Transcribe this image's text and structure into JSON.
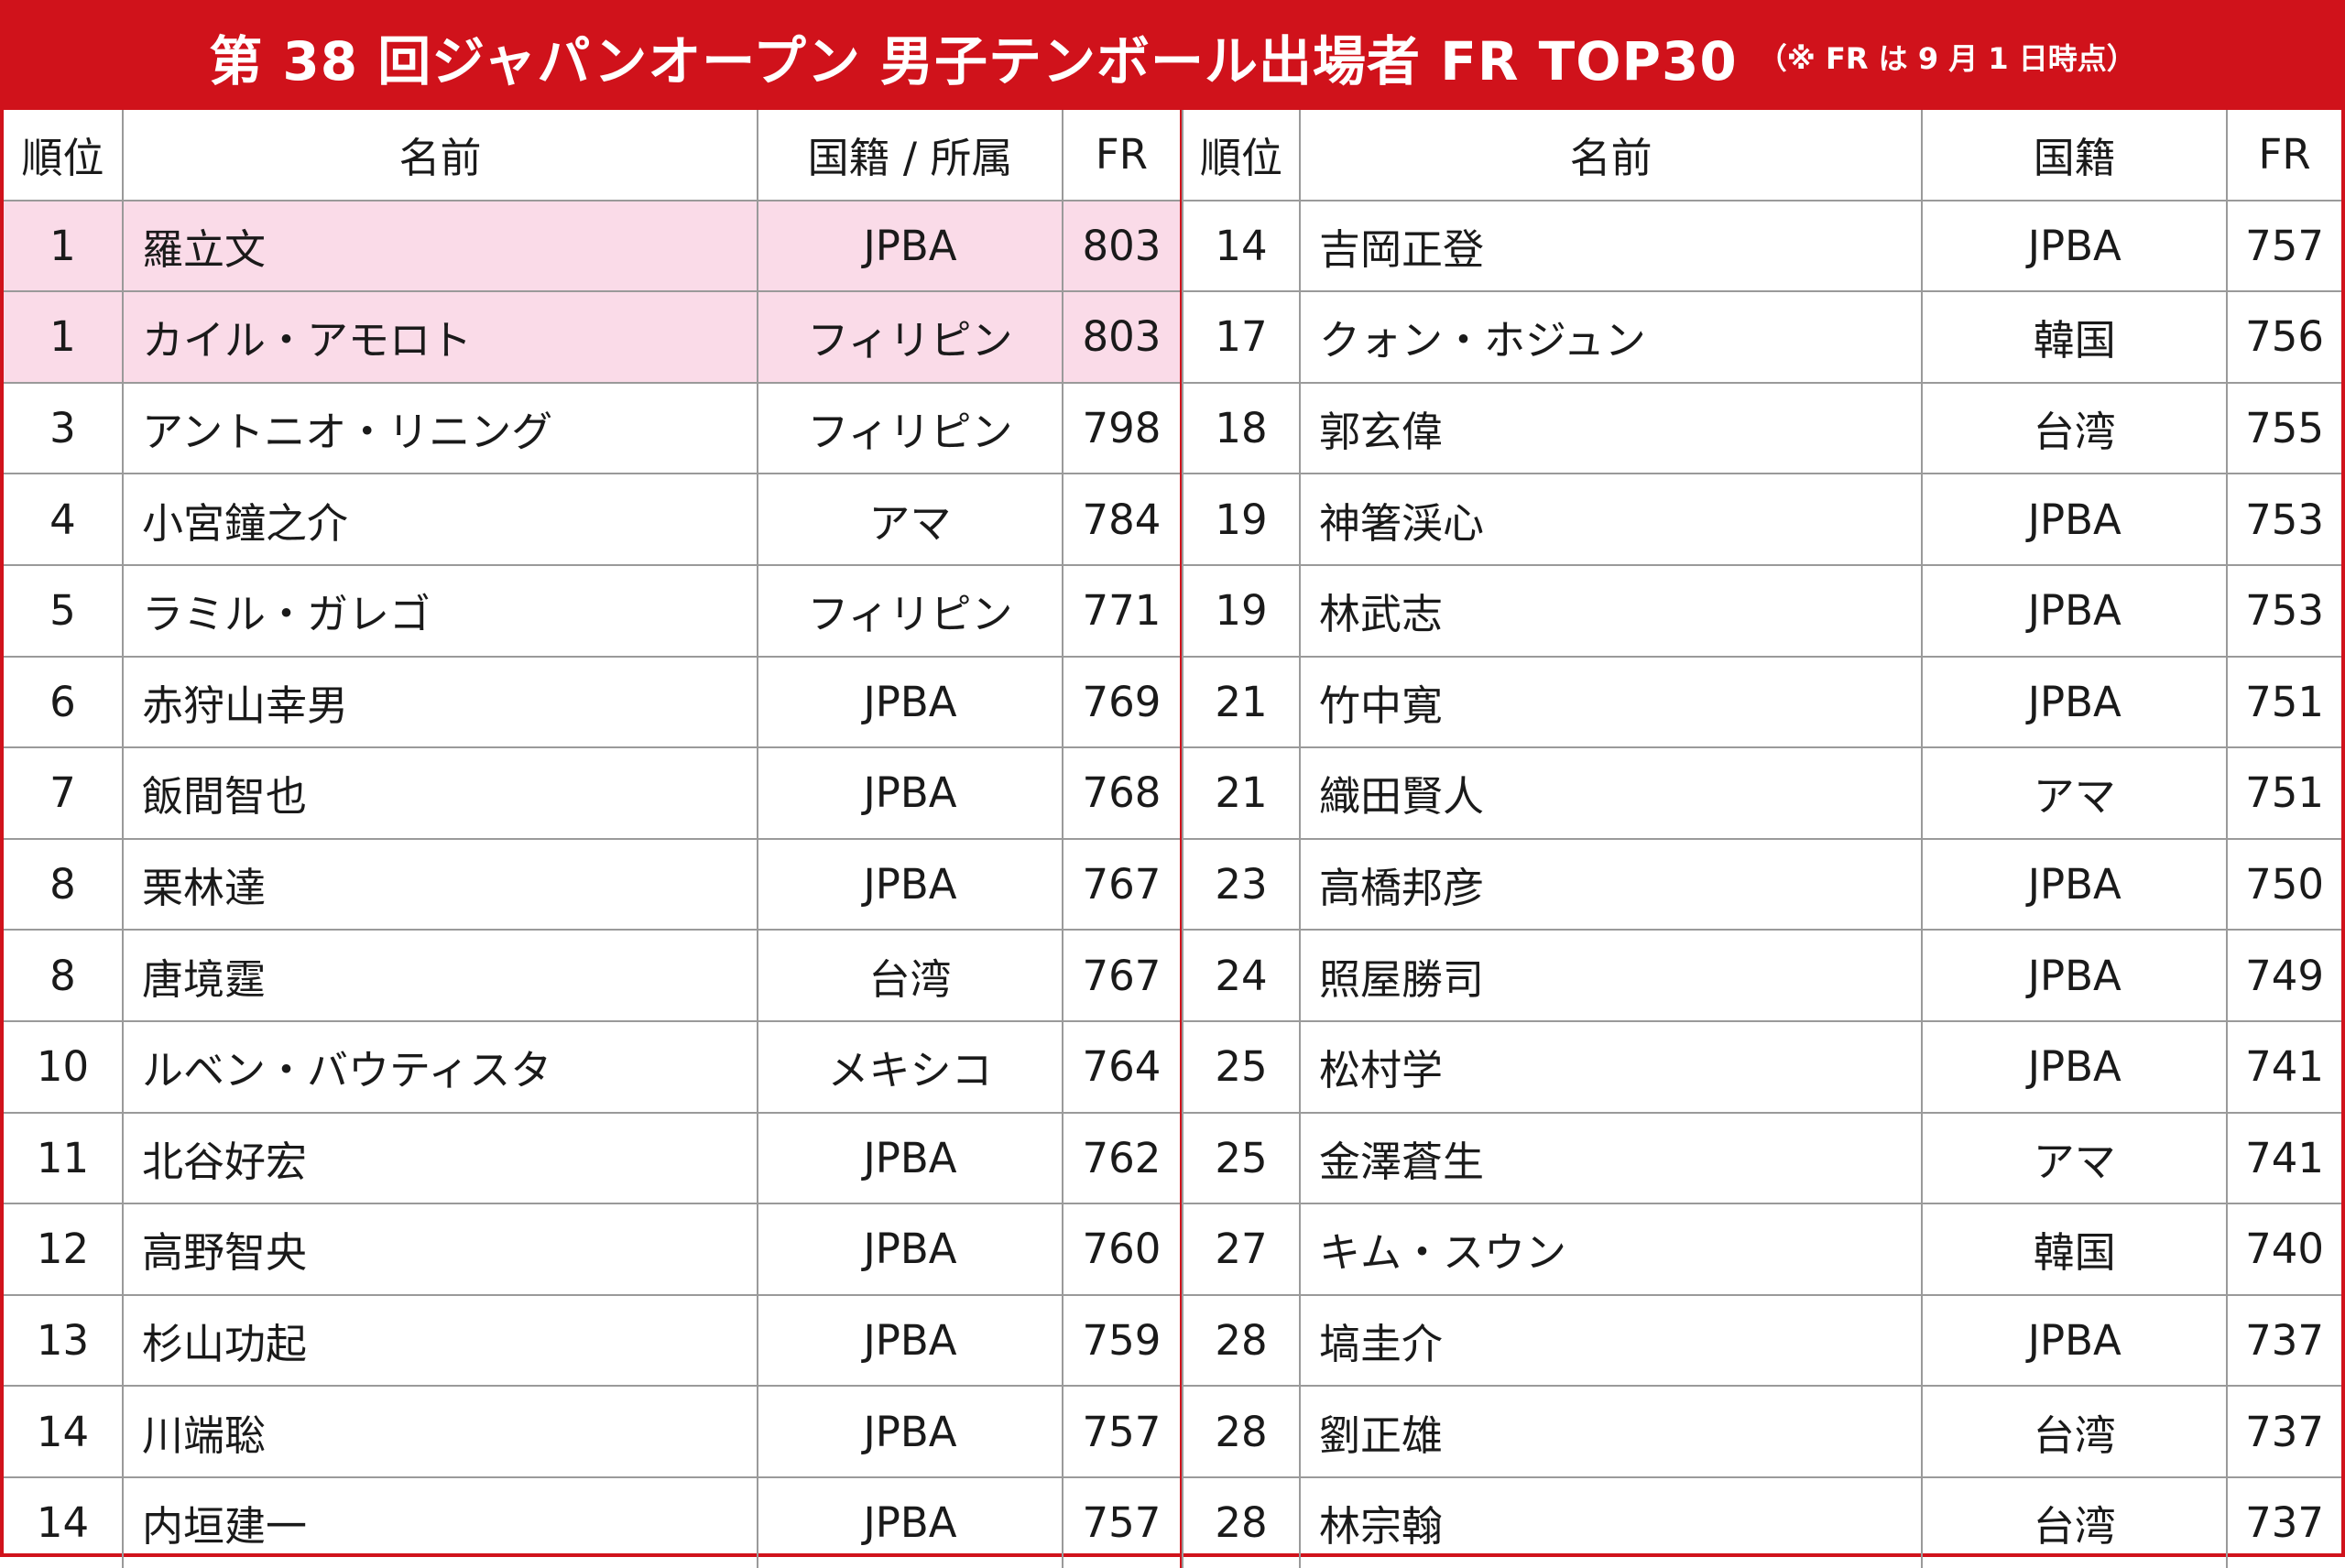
{
  "title": {
    "main": "第 38 回ジャパンオープン 男子テンボール出場者 FR TOP30",
    "note": "（※ FR は 9 月 1 日時点）"
  },
  "colors": {
    "accent": "#d0121b",
    "highlight_row": "#fadbe8"
  },
  "left_table": {
    "headers": [
      "順位",
      "名前",
      "国籍 / 所属",
      "FR"
    ],
    "rows": [
      {
        "rank": "1",
        "name": "羅立文",
        "nation": "JPBA",
        "fr": "803",
        "highlight": true
      },
      {
        "rank": "1",
        "name": "カイル・アモロト",
        "nation": "フィリピン",
        "fr": "803",
        "highlight": true
      },
      {
        "rank": "3",
        "name": "アントニオ・リニング",
        "nation": "フィリピン",
        "fr": "798"
      },
      {
        "rank": "4",
        "name": "小宮鐘之介",
        "nation": "アマ",
        "fr": "784"
      },
      {
        "rank": "5",
        "name": "ラミル・ガレゴ",
        "nation": "フィリピン",
        "fr": "771"
      },
      {
        "rank": "6",
        "name": "赤狩山幸男",
        "nation": "JPBA",
        "fr": "769"
      },
      {
        "rank": "7",
        "name": "飯間智也",
        "nation": "JPBA",
        "fr": "768"
      },
      {
        "rank": "8",
        "name": "栗林達",
        "nation": "JPBA",
        "fr": "767"
      },
      {
        "rank": "8",
        "name": "唐境霆",
        "nation": "台湾",
        "fr": "767"
      },
      {
        "rank": "10",
        "name": "ルベン・バウティスタ",
        "nation": "メキシコ",
        "fr": "764"
      },
      {
        "rank": "11",
        "name": "北谷好宏",
        "nation": "JPBA",
        "fr": "762"
      },
      {
        "rank": "12",
        "name": "高野智央",
        "nation": "JPBA",
        "fr": "760"
      },
      {
        "rank": "13",
        "name": "杉山功起",
        "nation": "JPBA",
        "fr": "759"
      },
      {
        "rank": "14",
        "name": "川端聡",
        "nation": "JPBA",
        "fr": "757"
      },
      {
        "rank": "14",
        "name": "内垣建一",
        "nation": "JPBA",
        "fr": "757"
      }
    ]
  },
  "right_table": {
    "headers": [
      "順位",
      "名前",
      "国籍",
      "FR"
    ],
    "rows": [
      {
        "rank": "14",
        "name": "吉岡正登",
        "nation": "JPBA",
        "fr": "757"
      },
      {
        "rank": "17",
        "name": "クォン・ホジュン",
        "nation": "韓国",
        "fr": "756"
      },
      {
        "rank": "18",
        "name": "郭玄偉",
        "nation": "台湾",
        "fr": "755"
      },
      {
        "rank": "19",
        "name": "神箸渓心",
        "nation": "JPBA",
        "fr": "753"
      },
      {
        "rank": "19",
        "name": "林武志",
        "nation": "JPBA",
        "fr": "753"
      },
      {
        "rank": "21",
        "name": "竹中寛",
        "nation": "JPBA",
        "fr": "751"
      },
      {
        "rank": "21",
        "name": "織田賢人",
        "nation": "アマ",
        "fr": "751"
      },
      {
        "rank": "23",
        "name": "高橋邦彦",
        "nation": "JPBA",
        "fr": "750"
      },
      {
        "rank": "24",
        "name": "照屋勝司",
        "nation": "JPBA",
        "fr": "749"
      },
      {
        "rank": "25",
        "name": "松村学",
        "nation": "JPBA",
        "fr": "741"
      },
      {
        "rank": "25",
        "name": "金澤蒼生",
        "nation": "アマ",
        "fr": "741"
      },
      {
        "rank": "27",
        "name": "キム・スウン",
        "nation": "韓国",
        "fr": "740"
      },
      {
        "rank": "28",
        "name": "塙圭介",
        "nation": "JPBA",
        "fr": "737"
      },
      {
        "rank": "28",
        "name": "劉正雄",
        "nation": "台湾",
        "fr": "737"
      },
      {
        "rank": "28",
        "name": "林宗翰",
        "nation": "台湾",
        "fr": "737"
      }
    ]
  }
}
